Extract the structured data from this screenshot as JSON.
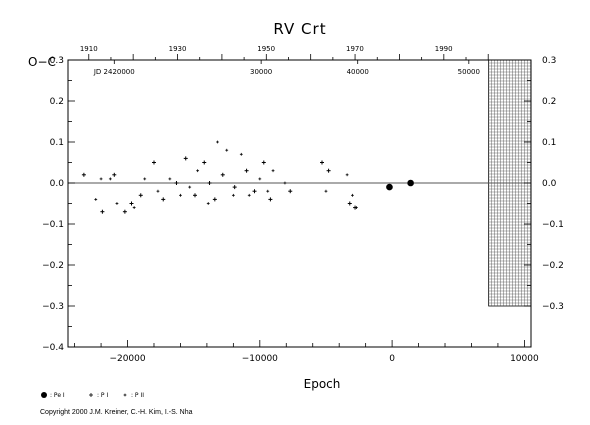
{
  "chart_data": {
    "type": "scatter",
    "title": "RV  Crt",
    "ylabel": "O−C",
    "xlabel": "Epoch",
    "xlim": [
      -24500,
      10500
    ],
    "ylim": [
      -0.4,
      0.3
    ],
    "x_ticks": [
      -20000,
      -10000,
      0,
      10000
    ],
    "x_tick_labels": [
      "−20000",
      "−10000",
      "0",
      "10000"
    ],
    "y_ticks": [
      0.3,
      0.2,
      0.1,
      0.0,
      -0.1,
      -0.2,
      -0.3,
      -0.4
    ],
    "y_tick_labels": [
      "0.3",
      "0.2",
      "0.1",
      "0.0",
      "−0.1",
      "−0.2",
      "−0.3",
      "−0.4"
    ],
    "right_y_ticks": [
      0.3,
      0.2,
      0.1,
      0.0,
      -0.1,
      -0.2,
      -0.3
    ],
    "right_y_tick_labels": [
      "0.3",
      "0.2",
      "0.1",
      "0.0",
      "−0.1",
      "−0.2",
      "−0.3"
    ],
    "top_year_ticks": [
      {
        "label": "1910",
        "epoch": -22930
      },
      {
        "label": "1930",
        "epoch": -16220
      },
      {
        "label": "1950",
        "epoch": -9520
      },
      {
        "label": "1970",
        "epoch": -2810
      },
      {
        "label": "1990",
        "epoch": 3900
      }
    ],
    "top_jd_labels": [
      {
        "label": "JD 2420000",
        "epoch": -21000
      },
      {
        "label": "30000",
        "epoch": -9900
      },
      {
        "label": "40000",
        "epoch": -2600
      },
      {
        "label": "50000",
        "epoch": 5800
      }
    ],
    "future_region": {
      "from_epoch": 7300,
      "to_epoch": 10500,
      "from_oc": -0.3,
      "to_oc": 0.3
    },
    "zero_line": true,
    "series": [
      {
        "name": "Pe",
        "marker": "filled-circle",
        "x": [
          -200,
          1400
        ],
        "y": [
          -0.01,
          0.0
        ]
      },
      {
        "name": "P",
        "marker": "plus",
        "x": [
          -23300,
          -21900,
          -21000,
          -20200,
          -19700,
          -19000,
          -18000,
          -17300,
          -16300,
          -15600,
          -14900,
          -14200,
          -13800,
          -13400,
          -12800,
          -11900,
          -11000,
          -10400,
          -9700,
          -9200,
          -7700,
          -5300,
          -4800,
          -3200,
          -2800
        ],
        "y": [
          0.02,
          -0.07,
          0.02,
          -0.07,
          -0.05,
          -0.03,
          0.05,
          -0.04,
          0.0,
          0.06,
          -0.03,
          0.05,
          0.0,
          -0.04,
          0.02,
          -0.01,
          0.03,
          -0.02,
          0.05,
          -0.04,
          -0.02,
          0.05,
          0.03,
          -0.05,
          -0.06
        ]
      },
      {
        "name": "P II",
        "marker": "small-plus",
        "x": [
          -22400,
          -22000,
          -21300,
          -20800,
          -19500,
          -18700,
          -17700,
          -16800,
          -16000,
          -15300,
          -14700,
          -13900,
          -13200,
          -12500,
          -12000,
          -11400,
          -10800,
          -10000,
          -9400,
          -9000,
          -8100,
          -5000,
          -3400,
          -3000,
          -2700
        ],
        "y": [
          -0.04,
          0.01,
          0.01,
          -0.05,
          -0.06,
          0.01,
          -0.02,
          0.01,
          -0.03,
          -0.01,
          0.03,
          -0.05,
          0.1,
          0.08,
          -0.03,
          0.07,
          -0.03,
          0.01,
          -0.02,
          0.03,
          0.0,
          -0.02,
          0.02,
          -0.03,
          -0.06
        ]
      }
    ]
  },
  "legend": [
    {
      "symbol": "filled-circle",
      "text": ": Pe  I"
    },
    {
      "symbol": "plus",
      "text": ": P  I"
    },
    {
      "symbol": "small-plus",
      "text": ": P  II"
    }
  ],
  "copyright": "Copyright 2000 J.M. Kreiner, C.-H. Kim, I.-S. Nha"
}
